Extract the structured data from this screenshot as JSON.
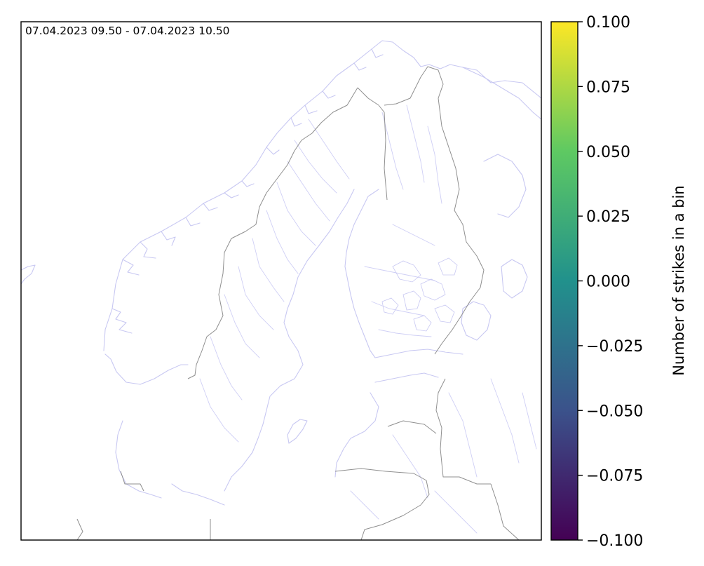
{
  "map": {
    "time_range": "07.04.2023 09.50 - 07.04.2023 10.50",
    "region": "Fennoscandia / Baltic Sea",
    "colors": {
      "coastline": "#c8c8f2",
      "rivers": "#cfcff5",
      "borders": "#8f8f8f",
      "frame": "#000000"
    }
  },
  "colorbar": {
    "label": "Number of strikes in a bin",
    "colormap": "viridis",
    "colormap_stops": [
      "#440154",
      "#3b528b",
      "#21918c",
      "#5ec962",
      "#fde725"
    ],
    "ticks": [
      "0.100",
      "0.075",
      "0.050",
      "0.025",
      "0.000",
      "−0.025",
      "−0.050",
      "−0.075",
      "−0.100"
    ],
    "range": [
      -0.1,
      0.1
    ]
  }
}
